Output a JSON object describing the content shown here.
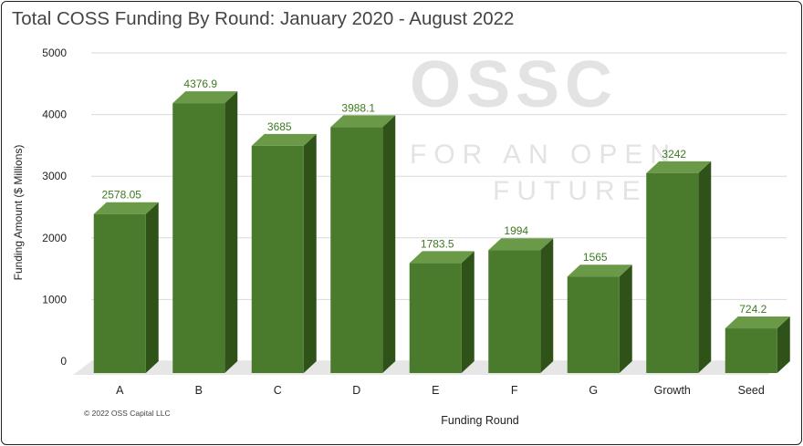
{
  "watermark": {
    "brand": "OSSC",
    "line1": "FOR AN OPEN",
    "line2": "FUTURE"
  },
  "footer": {
    "copyright": "© 2022 OSS Capital LLC"
  },
  "colors": {
    "bar_front": "#4a7a2b",
    "bar_side": "#2e5218",
    "bar_top": "#6a9a48",
    "label": "#3e7a20",
    "grid": "#d9d9d9"
  },
  "chart_data": {
    "type": "bar",
    "title": "Total COSS Funding By Round: January 2020 - August 2022",
    "xlabel": "Funding Round",
    "ylabel": "Funding Amount ($ Millions)",
    "ylim": [
      0,
      5000
    ],
    "yticks": [
      "0",
      "1000",
      "2000",
      "3000",
      "4000",
      "5000"
    ],
    "grid": true,
    "categories": [
      "A",
      "B",
      "C",
      "D",
      "E",
      "F",
      "G",
      "Growth",
      "Seed"
    ],
    "values": [
      2578.05,
      4376.9,
      3685,
      3988.1,
      1783.5,
      1994,
      1565,
      3242,
      724.2
    ],
    "labels": [
      "2578.05",
      "4376.9",
      "3685",
      "3988.1",
      "1783.5",
      "1994",
      "1565",
      "3242",
      "724.2"
    ]
  }
}
